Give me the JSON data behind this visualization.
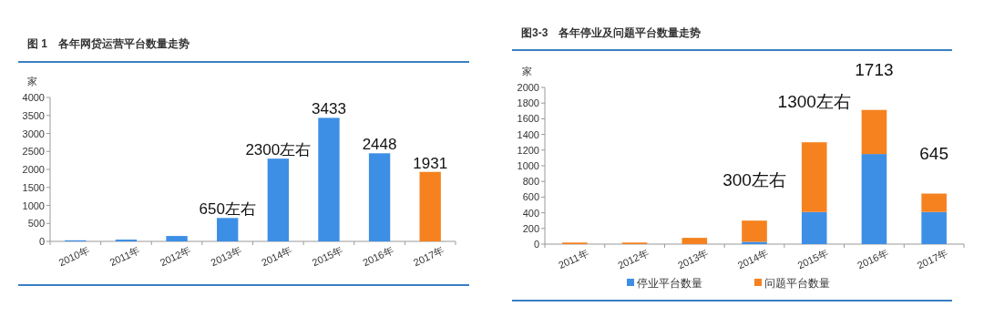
{
  "chart_data": [
    {
      "type": "bar",
      "title": "图 1　各年网贷运营平台数量走势",
      "ylabel": "家",
      "categories": [
        "2010年",
        "2011年",
        "2012年",
        "2013年",
        "2014年",
        "2015年",
        "2016年",
        "2017年"
      ],
      "values": [
        30,
        50,
        150,
        650,
        2300,
        3433,
        2448,
        1931
      ],
      "colors": [
        "#3d8fe6",
        "#3d8fe6",
        "#3d8fe6",
        "#3d8fe6",
        "#3d8fe6",
        "#3d8fe6",
        "#3d8fe6",
        "#f5821f"
      ],
      "value_labels": [
        null,
        null,
        null,
        "650左右",
        "2300左右",
        "3433",
        "2448",
        "1931"
      ],
      "ylim": [
        0,
        4000
      ],
      "yticks": [
        0,
        500,
        1000,
        1500,
        2000,
        2500,
        3000,
        3500,
        4000
      ],
      "grid": false,
      "legend": false
    },
    {
      "type": "bar",
      "title": "图3-3　各年停业及问题平台数量走势",
      "ylabel": "家",
      "stacked": true,
      "categories": [
        "2011年",
        "2012年",
        "2013年",
        "2014年",
        "2015年",
        "2016年",
        "2017年"
      ],
      "series": [
        {
          "name": "停业平台数量",
          "color": "#3d8fe6",
          "values": [
            0,
            0,
            0,
            30,
            410,
            1150,
            410
          ]
        },
        {
          "name": "问题平台数量",
          "color": "#f5821f",
          "values": [
            20,
            20,
            80,
            270,
            890,
            563,
            235
          ]
        }
      ],
      "totals": [
        null,
        null,
        null,
        "300左右",
        "1300左右",
        "1713",
        "645"
      ],
      "ylim": [
        0,
        2000
      ],
      "yticks": [
        0,
        200,
        400,
        600,
        800,
        1000,
        1200,
        1400,
        1600,
        1800,
        2000
      ],
      "grid": false,
      "legend": "bottom"
    }
  ]
}
